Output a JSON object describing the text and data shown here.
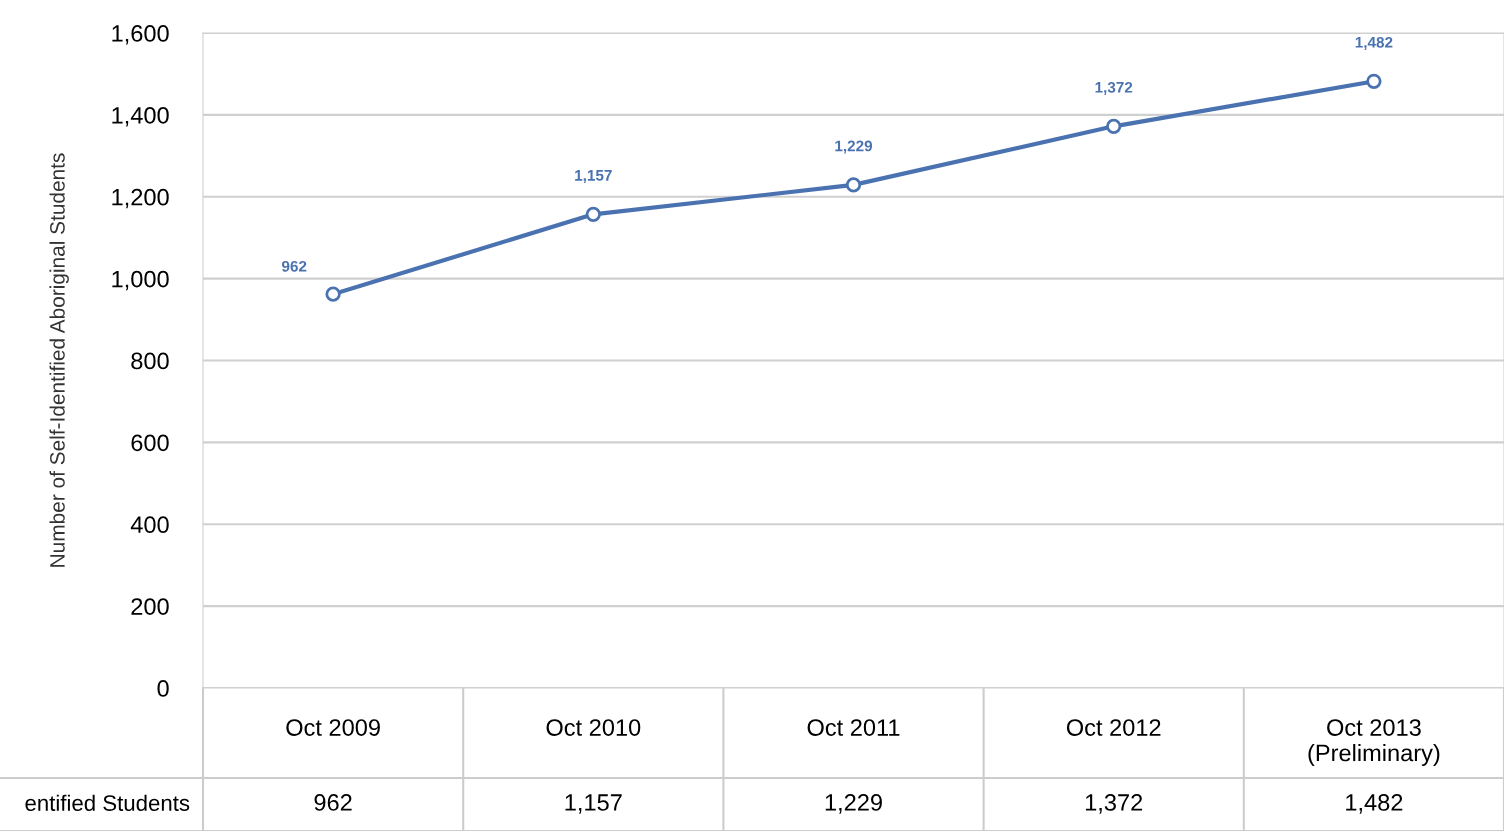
{
  "chart_data": {
    "type": "line",
    "ylabel": "Number of Self-Identified Aboriginal Students",
    "categories": [
      "Oct 2009",
      "Oct 2010",
      "Oct 2011",
      "Oct 2012",
      "Oct 2013\n(Preliminary)"
    ],
    "series": [
      {
        "color": "#4a72b0",
        "values": [
          962,
          1157,
          1229,
          1372,
          1482
        ],
        "value_labels": [
          "962",
          "1,157",
          "1,229",
          "1,372",
          "1,482"
        ]
      }
    ],
    "ylim": [
      0,
      1600
    ],
    "yticks": [
      0,
      {
        "value": 200,
        "label": "200"
      },
      {
        "value": 400,
        "label": "400"
      },
      {
        "value": 600,
        "label": "600"
      },
      {
        "value": 800,
        "label": "800"
      },
      {
        "value": 1000,
        "label": "1,000"
      },
      {
        "value": 1200,
        "label": "1,200"
      },
      {
        "value": 1400,
        "label": "1,400"
      },
      {
        "value": 1600,
        "label": "1,600"
      }
    ],
    "grid": "y",
    "marker": "circle",
    "line_style": "solid",
    "annotations": [
      "entified Students"
    ]
  }
}
